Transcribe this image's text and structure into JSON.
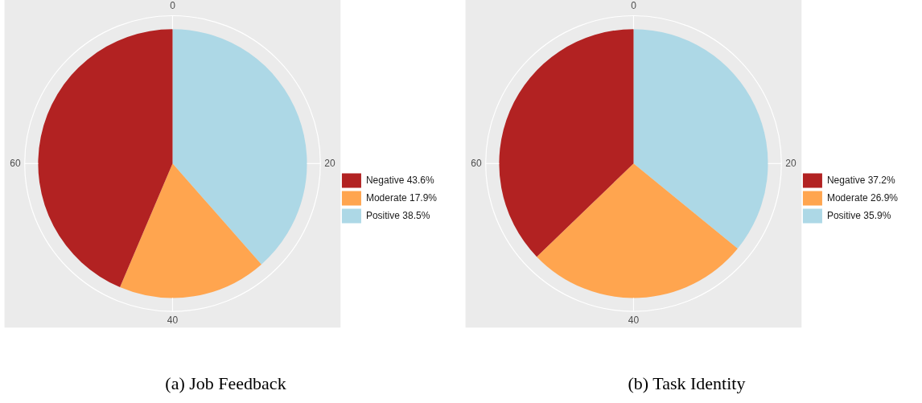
{
  "chart_data": [
    {
      "type": "pie",
      "title": "(a) Job Feedback",
      "categories": [
        "Positive 38.5%",
        "Moderate 17.9%",
        "Negative 43.6%"
      ],
      "values": [
        38.5,
        17.9,
        43.6
      ],
      "colors": [
        "#add8e6",
        "#ffa54f",
        "#b22222"
      ],
      "legend": "right",
      "grid": true,
      "annotations": [
        "0",
        "20",
        "40",
        "60"
      ]
    },
    {
      "type": "pie",
      "title": "(b) Task Identity",
      "categories": [
        "Positive 35.9%",
        "Moderate 26.9%",
        "Negative 37.2%"
      ],
      "values": [
        35.9,
        26.9,
        37.2
      ],
      "colors": [
        "#add8e6",
        "#ffa54f",
        "#b22222"
      ],
      "legend": "right",
      "grid": true,
      "annotations": [
        "0",
        "20",
        "40",
        "60"
      ]
    }
  ]
}
